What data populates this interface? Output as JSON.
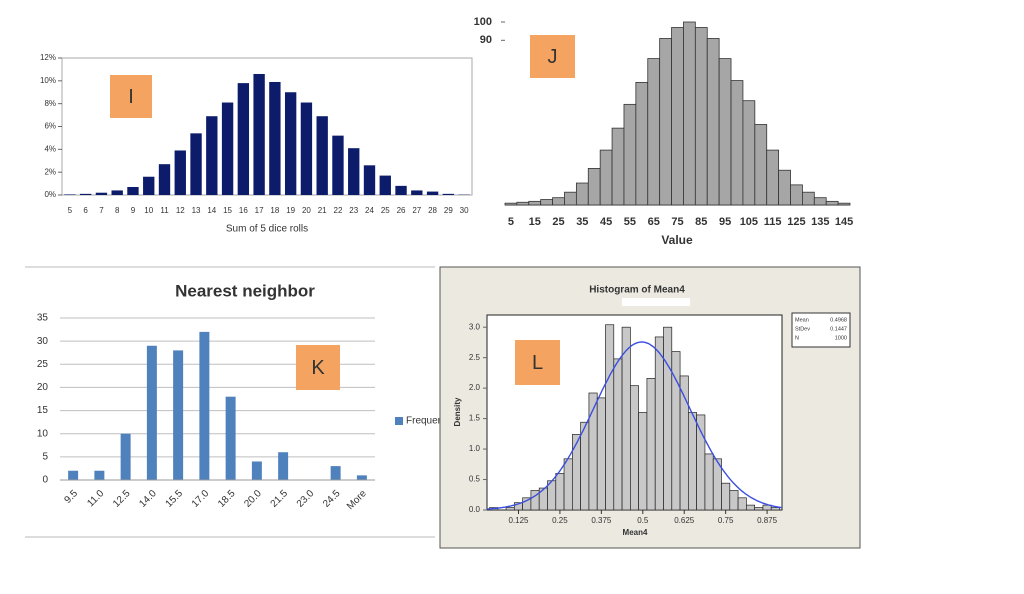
{
  "chart_data": [
    {
      "type": "bar",
      "annotation": "I",
      "x_label": "Sum of 5 dice rolls",
      "color": "#0c1c6b",
      "categories": [
        "5",
        "6",
        "7",
        "8",
        "9",
        "10",
        "11",
        "12",
        "13",
        "14",
        "15",
        "16",
        "17",
        "18",
        "19",
        "20",
        "21",
        "22",
        "23",
        "24",
        "25",
        "26",
        "27",
        "28",
        "29",
        "30"
      ],
      "values": [
        0.05,
        0.1,
        0.2,
        0.4,
        0.7,
        1.6,
        2.7,
        3.9,
        5.4,
        6.9,
        8.1,
        9.8,
        10.6,
        9.9,
        9.0,
        8.1,
        6.9,
        5.2,
        4.1,
        2.6,
        1.7,
        0.8,
        0.4,
        0.3,
        0.1,
        0.03
      ],
      "ylim": [
        0,
        12
      ],
      "yticks": [
        {
          "value": 0,
          "label": "0%"
        },
        {
          "value": 2,
          "label": "2%"
        },
        {
          "value": 4,
          "label": "4%"
        },
        {
          "value": 6,
          "label": "6%"
        },
        {
          "value": 8,
          "label": "8%"
        },
        {
          "value": 10,
          "label": "10%"
        },
        {
          "value": 12,
          "label": "12%"
        }
      ],
      "grid": false
    },
    {
      "type": "bar",
      "annotation": "J",
      "x_label": "Value",
      "color": "#a6a6a6",
      "categories": [
        "5",
        null,
        "15",
        null,
        "25",
        null,
        "35",
        null,
        "45",
        null,
        "55",
        null,
        "65",
        null,
        "75",
        null,
        "85",
        null,
        "95",
        null,
        "105",
        null,
        "115",
        null,
        "125",
        null,
        "135",
        null,
        "145"
      ],
      "values": [
        1,
        1.5,
        2,
        3,
        4,
        7,
        12,
        20,
        30,
        42,
        55,
        67,
        80,
        91,
        97,
        100,
        97,
        91,
        80,
        68,
        57,
        44,
        30,
        19,
        11,
        7,
        4,
        2,
        1
      ],
      "ylim": [
        0,
        100
      ],
      "yticks": [
        90,
        100
      ],
      "grid": false
    },
    {
      "type": "bar",
      "annotation": "K",
      "title": "Nearest neighbor",
      "categories": [
        "9.5",
        "11.0",
        "12.5",
        "14.0",
        "15.5",
        "17.0",
        "18.5",
        "20.0",
        "21.5",
        "23.0",
        "24.5",
        "More"
      ],
      "series": [
        {
          "name": "Frequency",
          "color": "#4f81bd",
          "values": [
            2,
            2,
            10,
            29,
            28,
            32,
            18,
            4,
            6,
            0,
            3,
            1
          ]
        }
      ],
      "ylim": [
        0,
        35
      ],
      "yticks": [
        0,
        5,
        10,
        15,
        20,
        25,
        30,
        35
      ],
      "grid": true
    },
    {
      "type": "histogram",
      "annotation": "L",
      "title": "Histogram of Mean4",
      "x_label": "Mean4",
      "y_label": "Density",
      "color": "#c8c8c8",
      "curve_color": "#3b4ee0",
      "bins": [
        0.0375,
        0.0625,
        0.0875,
        0.1125,
        0.1375,
        0.1625,
        0.1875,
        0.2125,
        0.2375,
        0.2625,
        0.2875,
        0.3125,
        0.3375,
        0.3625,
        0.3875,
        0.4125,
        0.4375,
        0.4625,
        0.4875,
        0.5125,
        0.5375,
        0.5625,
        0.5875,
        0.6125,
        0.6375,
        0.6625,
        0.6875,
        0.7125,
        0.7375,
        0.7625,
        0.7875,
        0.8125,
        0.8375,
        0.8625,
        0.8875,
        0.9125
      ],
      "values": [
        0.04,
        0,
        0.04,
        0.12,
        0.2,
        0.32,
        0.36,
        0.48,
        0.6,
        0.84,
        1.24,
        1.44,
        1.92,
        1.84,
        3.04,
        2.48,
        3.0,
        2.04,
        1.6,
        2.16,
        2.84,
        3.0,
        2.6,
        2.2,
        1.6,
        1.56,
        0.92,
        0.84,
        0.44,
        0.32,
        0.2,
        0.08,
        0.04,
        0.08,
        0.04
      ],
      "xlim": [
        0.03,
        0.92
      ],
      "xticks": [
        0.125,
        0.25,
        0.375,
        0.5,
        0.625,
        0.75,
        0.875
      ],
      "ylim": [
        0,
        3.2
      ],
      "yticks": [
        {
          "value": 0,
          "label": "0.0"
        },
        0.5,
        {
          "value": 1,
          "label": "1.0"
        },
        1.5,
        {
          "value": 2,
          "label": "2.0"
        },
        2.5,
        {
          "value": 3,
          "label": "3.0"
        }
      ],
      "stats": {
        "labels": [
          "Mean",
          "StDev",
          "N"
        ],
        "values": [
          0.4968,
          0.1447,
          1000
        ]
      }
    }
  ]
}
